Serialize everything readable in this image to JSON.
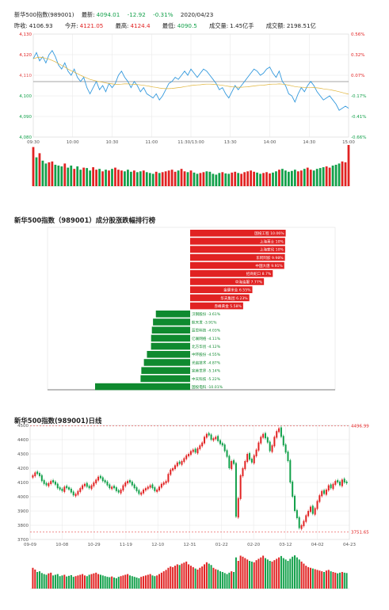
{
  "header": {
    "name": "新华500指数(989001)",
    "latest_label": "最新:",
    "latest": "4094.01",
    "change": "-12.92",
    "change_pct": "-0.31%",
    "date": "2020/04/23",
    "prev_close_label": "昨收:",
    "prev_close": "4106.93",
    "open_label": "今开:",
    "open": "4121.05",
    "high_label": "最高:",
    "high": "4124.4",
    "low_label": "最低:",
    "low": "4090.5",
    "volume_label": "成交量:",
    "volume": "1.45亿手",
    "amount_label": "成交额:",
    "amount": "2198.51亿"
  },
  "colors": {
    "up": "#e12222",
    "down": "#12a04a",
    "line": "#3399dd",
    "grid": "#e6e6e6"
  },
  "chart_data": [
    {
      "type": "line",
      "title": "",
      "ylim": [
        4080,
        4130
      ],
      "yticks_left": [
        "4,130",
        "4,120",
        "4,110",
        "4,100",
        "4,090",
        "4,080"
      ],
      "yticks_right": [
        "0.56%",
        "0.32%",
        "0.07%",
        "-0.17%",
        "-0.41%",
        "-0.66%"
      ],
      "prev_close": 4106.93,
      "xticks": [
        "09:30",
        "10:00",
        "10:30",
        "11:00",
        "11:30/13:00",
        "13:30",
        "14:00",
        "14:30",
        "15:00"
      ],
      "series": [
        {
          "values": [
            4118,
            4121,
            4117,
            4119,
            4116,
            4120,
            4122,
            4119,
            4115,
            4113,
            4116,
            4112,
            4110,
            4113,
            4109,
            4107,
            4109,
            4104,
            4101,
            4104,
            4107,
            4103,
            4105,
            4102,
            4106,
            4104,
            4106,
            4110,
            4112,
            4109,
            4107,
            4104,
            4107,
            4105,
            4102,
            4104,
            4101,
            4100,
            4099,
            4101,
            4098,
            4100,
            4103,
            4106,
            4107,
            4109,
            4108,
            4110,
            4112,
            4110,
            4113,
            4111,
            4109,
            4111,
            4113,
            4112,
            4110,
            4108,
            4106,
            4103,
            4104,
            4101,
            4099,
            4102,
            4105,
            4103,
            4105,
            4107,
            4109,
            4111,
            4113,
            4112,
            4110,
            4111,
            4113,
            4114,
            4111,
            4109,
            4112,
            4107,
            4105,
            4101,
            4100,
            4097,
            4101,
            4104,
            4102,
            4105,
            4107,
            4105,
            4102,
            4100,
            4098,
            4099,
            4100,
            4098,
            4096,
            4093,
            4094,
            4095,
            4094
          ]
        },
        {
          "values": [
            4118,
            4118.5,
            4118.8,
            4118.6,
            4118.2,
            4117.8,
            4117.2,
            4116.5,
            4115.6,
            4114.8,
            4114,
            4113,
            4112.2,
            4111.5,
            4110.8,
            4110,
            4109.3,
            4108.6,
            4108,
            4107.6,
            4107.2,
            4106.9,
            4106.6,
            4106.3,
            4106,
            4105.8,
            4105.6,
            4105.6,
            4105.7,
            4105.8,
            4105.8,
            4105.7,
            4105.6,
            4105.5,
            4105.3,
            4105.1,
            4104.9,
            4104.6,
            4104.3,
            4104.1,
            4103.8,
            4103.6,
            4103.5,
            4103.5,
            4103.6,
            4103.8,
            4104,
            4104.2,
            4104.5,
            4104.7,
            4105,
            4105.2,
            4105.3,
            4105.4,
            4105.6,
            4105.7,
            4105.7,
            4105.6,
            4105.5,
            4105.3,
            4105.1,
            4104.9,
            4104.6,
            4104.4,
            4104.3,
            4104.2,
            4104.2,
            4104.3,
            4104.4,
            4104.6,
            4104.8,
            4105,
            4105.1,
            4105.2,
            4105.4,
            4105.6,
            4105.7,
            4105.7,
            4105.8,
            4105.7,
            4105.5,
            4105.2,
            4104.9,
            4104.5,
            4104.3,
            4104.2,
            4104.1,
            4104.1,
            4104.1,
            4104,
            4103.9,
            4103.7,
            4103.4,
            4103.2,
            4103,
            4102.7,
            4102.4,
            4102,
            4101.6,
            4101.2,
            4100.8
          ]
        }
      ],
      "volume": [
        95,
        70,
        80,
        62,
        55,
        58,
        60,
        52,
        50,
        48,
        55,
        45,
        50,
        42,
        48,
        40,
        45,
        44,
        38,
        46,
        40,
        42,
        36,
        40,
        38,
        42,
        45,
        40,
        38,
        36,
        40,
        35,
        38,
        34,
        36,
        38,
        34,
        32,
        30,
        35,
        32,
        34,
        36,
        38,
        40,
        35,
        38,
        42,
        36,
        34,
        38,
        33,
        30,
        32,
        34,
        36,
        35,
        30,
        28,
        32,
        34,
        31,
        30,
        33,
        35,
        32,
        30,
        34,
        36,
        38,
        35,
        33,
        30,
        32,
        34,
        31,
        33,
        36,
        40,
        42,
        38,
        35,
        37,
        40,
        36,
        38,
        42,
        45,
        40,
        38,
        42,
        44,
        46,
        48,
        45,
        50,
        52,
        55,
        60,
        58,
        100
      ],
      "volume_up": [
        1,
        0,
        1,
        0,
        0,
        1,
        1,
        0,
        0,
        0,
        1,
        0,
        0,
        1,
        0,
        0,
        1,
        0,
        0,
        1,
        1,
        0,
        1,
        0,
        1,
        0,
        1,
        1,
        1,
        0,
        0,
        0,
        1,
        0,
        0,
        1,
        0,
        0,
        0,
        1,
        0,
        1,
        1,
        1,
        1,
        1,
        0,
        1,
        1,
        0,
        1,
        0,
        0,
        1,
        1,
        0,
        0,
        0,
        0,
        0,
        1,
        0,
        0,
        1,
        1,
        0,
        1,
        1,
        1,
        1,
        1,
        0,
        0,
        1,
        1,
        1,
        0,
        0,
        1,
        0,
        0,
        0,
        0,
        0,
        1,
        1,
        0,
        1,
        1,
        0,
        0,
        0,
        0,
        1,
        1,
        0,
        0,
        0,
        1,
        1,
        1
      ]
    },
    {
      "type": "bar",
      "title": "新华500指数（989001）成分股涨跌幅排行榜",
      "xlim": [
        -10.01,
        10.06
      ],
      "categories": [
        "国投工程",
        "上海莱士",
        "上海家化",
        "东阿阿胶",
        "中国大唐",
        "招商蛇口",
        "中海油服",
        "金健米业",
        "华夫集团",
        "赤峰黄金",
        "汉钢股份",
        "航天发",
        "蓝思科技",
        "亿联网络",
        "北方华创",
        "中环股份",
        "光启技术",
        "完美世界",
        "中天科技",
        "国投电科"
      ],
      "values": [
        10.06,
        10.0,
        10.0,
        9.98,
        9.91,
        8.7,
        7.77,
        6.55,
        6.23,
        5.58,
        -3.61,
        -3.91,
        -4.03,
        -4.11,
        -4.12,
        -4.55,
        -4.87,
        -5.14,
        -5.22,
        -10.01
      ],
      "labels": [
        "国投工程 10.06%",
        "上海莱士 10%",
        "上海家化 10%",
        "东阿阿胶 9.98%",
        "中国大唐 9.91%",
        "招商蛇口 8.7%",
        "中海油服 7.77%",
        "金健米业 6.55%",
        "华夫集团 6.23%",
        "赤峰黄金 5.58%",
        "汉钢股份 -3.61%",
        "航天发 -3.91%",
        "蓝思科技 -4.03%",
        "亿联网络 -4.11%",
        "北方华创 -4.12%",
        "中环股份 -4.55%",
        "光启技术 -4.87%",
        "完美世界 -5.14%",
        "中天科技 -5.22%",
        "国投电科 -10.01%"
      ]
    },
    {
      "type": "candlestick",
      "title": "新华500指数(989001)日线",
      "ylim": [
        3700,
        4500
      ],
      "yticks": [
        "4500",
        "4400",
        "4300",
        "4200",
        "4100",
        "4000",
        "3900",
        "3800",
        "3700"
      ],
      "xticks": [
        "09-09",
        "10-08",
        "10-29",
        "11-19",
        "12-10",
        "12-31",
        "01-22",
        "02-20",
        "03-12",
        "04-02",
        "04-23"
      ],
      "max_label": "4496.99",
      "min_label": "3751.65",
      "max": 4496.99,
      "min": 3751.65,
      "close": [
        4150,
        4170,
        4160,
        4145,
        4110,
        4090,
        4080,
        4095,
        4110,
        4100,
        4085,
        4060,
        4050,
        4040,
        4070,
        4060,
        4050,
        4030,
        4010,
        4020,
        4040,
        4060,
        4080,
        4090,
        4070,
        4060,
        4080,
        4100,
        4120,
        4140,
        4130,
        4110,
        4100,
        4080,
        4060,
        4070,
        4060,
        4040,
        4030,
        4050,
        4080,
        4100,
        4110,
        4100,
        4080,
        4060,
        4040,
        4020,
        4030,
        4050,
        4060,
        4070,
        4080,
        4060,
        4040,
        4050,
        4070,
        4090,
        4100,
        4110,
        4160,
        4190,
        4200,
        4220,
        4240,
        4230,
        4250,
        4270,
        4290,
        4300,
        4320,
        4330,
        4310,
        4340,
        4360,
        4380,
        4420,
        4440,
        4430,
        4400,
        4410,
        4420,
        4390,
        4370,
        4360,
        4320,
        4280,
        4200,
        4250,
        4230,
        3860,
        3990,
        4150,
        4200,
        4250,
        4300,
        4260,
        4240,
        4290,
        4330,
        4380,
        4420,
        4440,
        4410,
        4380,
        4320,
        4360,
        4420,
        4460,
        4480,
        4420,
        4360,
        4310,
        4250,
        4100,
        4000,
        3900,
        3850,
        3780,
        3800,
        3830,
        3870,
        3900,
        3930,
        3880,
        3920,
        3970,
        4010,
        4040,
        4020,
        4050,
        4080,
        4060,
        4090,
        4110,
        4100,
        4080,
        4120,
        4100,
        4094
      ],
      "volume": [
        60,
        55,
        48,
        50,
        45,
        42,
        40,
        44,
        46,
        38,
        40,
        42,
        36,
        38,
        40,
        35,
        37,
        39,
        34,
        36,
        38,
        40,
        42,
        38,
        36,
        40,
        42,
        44,
        46,
        42,
        40,
        38,
        36,
        34,
        33,
        35,
        32,
        30,
        34,
        36,
        38,
        40,
        42,
        38,
        36,
        34,
        32,
        30,
        34,
        36,
        38,
        40,
        42,
        38,
        36,
        38,
        42,
        46,
        50,
        54,
        60,
        64,
        62,
        66,
        70,
        68,
        72,
        75,
        78,
        70,
        66,
        62,
        58,
        55,
        60,
        64,
        70,
        76,
        72,
        68,
        60,
        56,
        54,
        50,
        48,
        45,
        42,
        46,
        50,
        48,
        90,
        80,
        95,
        92,
        88,
        84,
        80,
        78,
        76,
        82,
        86,
        90,
        95,
        88,
        84,
        80,
        78,
        82,
        86,
        90,
        94,
        88,
        84,
        80,
        86,
        92,
        96,
        90,
        84,
        78,
        72,
        66,
        62,
        60,
        58,
        56,
        54,
        52,
        50,
        48,
        52,
        54,
        50,
        48,
        46,
        44,
        46,
        48,
        46,
        45
      ],
      "up": [
        1,
        1,
        0,
        0,
        0,
        0,
        0,
        1,
        1,
        0,
        0,
        0,
        0,
        0,
        1,
        0,
        0,
        0,
        0,
        1,
        1,
        1,
        1,
        1,
        0,
        0,
        1,
        1,
        1,
        1,
        0,
        0,
        0,
        0,
        0,
        1,
        0,
        0,
        0,
        1,
        1,
        1,
        1,
        0,
        0,
        0,
        0,
        0,
        1,
        1,
        1,
        1,
        1,
        0,
        0,
        1,
        1,
        1,
        1,
        1,
        1,
        1,
        1,
        1,
        1,
        0,
        1,
        1,
        1,
        1,
        1,
        1,
        0,
        1,
        1,
        1,
        1,
        1,
        0,
        0,
        1,
        1,
        0,
        0,
        0,
        0,
        0,
        0,
        1,
        0,
        0,
        1,
        1,
        1,
        1,
        1,
        0,
        0,
        1,
        1,
        1,
        1,
        1,
        0,
        0,
        0,
        1,
        1,
        1,
        1,
        0,
        0,
        0,
        0,
        0,
        0,
        0,
        0,
        0,
        1,
        1,
        1,
        1,
        1,
        0,
        1,
        1,
        1,
        1,
        0,
        1,
        1,
        0,
        1,
        1,
        0,
        0,
        1,
        0,
        0
      ]
    }
  ]
}
